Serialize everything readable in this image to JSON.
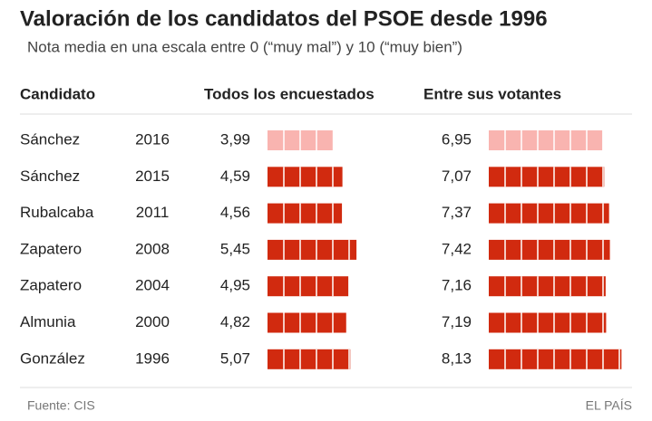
{
  "chart_data": {
    "type": "bar_table",
    "title": "Valoración de los candidatos del PSOE desde 1996",
    "subtitle": "Nota media en una escala entre 0 (“muy mal”) y 10 (“muy bien”)",
    "category_header": "Candidato",
    "categories": [
      "Sánchez",
      "Sánchez",
      "Rubalcaba",
      "Zapatero",
      "Zapatero",
      "Almunia",
      "González"
    ],
    "years": [
      2016,
      2015,
      2011,
      2008,
      2004,
      2000,
      1996
    ],
    "series": [
      {
        "name": "Todos los encuestados",
        "color": "#d12a0f",
        "values": [
          3.99,
          4.59,
          4.56,
          5.45,
          4.95,
          4.82,
          5.07
        ],
        "value_labels": [
          "3,99",
          "4,59",
          "4,56",
          "5,45",
          "4,95",
          "4,82",
          "5,07"
        ]
      },
      {
        "name": "Entre sus votantes",
        "color": "#d12a0f",
        "values": [
          6.95,
          7.07,
          7.37,
          7.42,
          7.16,
          7.19,
          8.13
        ],
        "value_labels": [
          "6,95",
          "7,07",
          "7,37",
          "7,42",
          "7,16",
          "7,19",
          "8,13"
        ]
      }
    ],
    "highlight_index": 0,
    "highlight_color": "#f9b4b0",
    "xlim": [
      0,
      10
    ],
    "source": "Fuente: CIS",
    "credit": "EL PAÍS"
  }
}
